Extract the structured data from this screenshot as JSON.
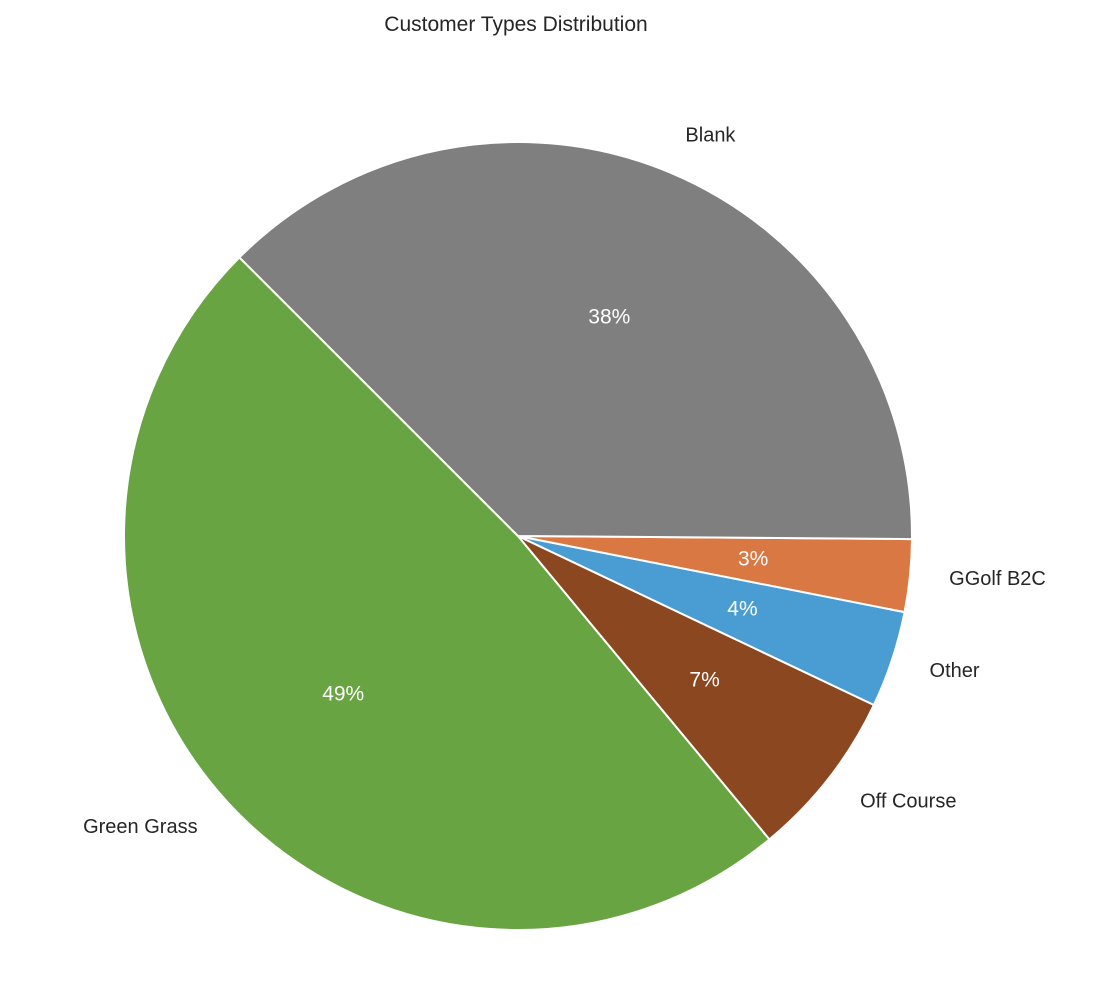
{
  "chart_data": {
    "type": "pie",
    "title": "Customer Types Distribution",
    "start_angle_deg": 135,
    "direction": "counterclockwise",
    "slices": [
      {
        "label": "Green Grass",
        "value": 49,
        "pct_label": "49%",
        "color": "#69a443"
      },
      {
        "label": "Off Course",
        "value": 7,
        "pct_label": "7%",
        "color": "#8b4720"
      },
      {
        "label": "Other",
        "value": 4,
        "pct_label": "4%",
        "color": "#4a9dd3"
      },
      {
        "label": "GGolf B2C",
        "value": 3,
        "pct_label": "3%",
        "color": "#da7843"
      },
      {
        "label": "Blank",
        "value": 38,
        "pct_label": "38%",
        "color": "#7f7f7f"
      }
    ],
    "legend": "none",
    "grid": false
  }
}
